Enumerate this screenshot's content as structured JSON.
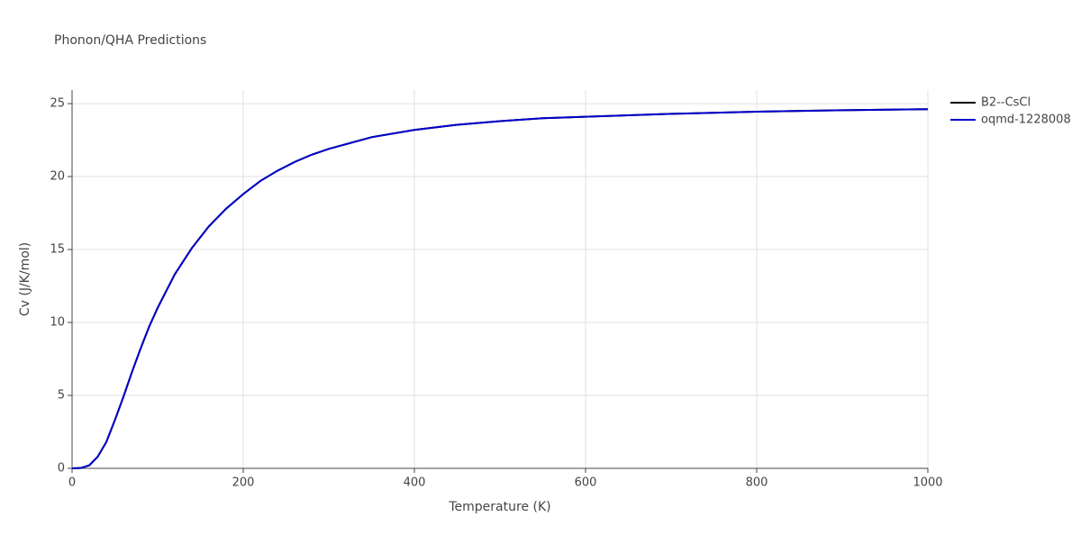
{
  "chart_data": {
    "type": "line",
    "title": "Phonon/QHA Predictions",
    "x_label": "Temperature (K)",
    "y_label": "Cv (J/K/mol)",
    "x": [
      0,
      10,
      20,
      30,
      40,
      50,
      60,
      70,
      80,
      90,
      100,
      120,
      140,
      160,
      180,
      200,
      220,
      240,
      260,
      280,
      300,
      350,
      400,
      450,
      500,
      550,
      600,
      700,
      800,
      900,
      1000
    ],
    "series": [
      {
        "name": "B2--CsCl",
        "color": "#000000",
        "values": [
          0,
          0.02,
          0.2,
          0.8,
          1.8,
          3.3,
          4.9,
          6.6,
          8.2,
          9.7,
          11.0,
          13.3,
          15.1,
          16.6,
          17.8,
          18.8,
          19.7,
          20.4,
          21.0,
          21.5,
          21.9,
          22.7,
          23.2,
          23.55,
          23.8,
          24.0,
          24.1,
          24.3,
          24.45,
          24.55,
          24.62
        ]
      },
      {
        "name": "oqmd-1228008",
        "color": "#0000cc",
        "values": [
          0,
          0.02,
          0.2,
          0.8,
          1.8,
          3.3,
          4.9,
          6.6,
          8.2,
          9.7,
          11.0,
          13.3,
          15.1,
          16.6,
          17.8,
          18.8,
          19.7,
          20.4,
          21.0,
          21.5,
          21.9,
          22.7,
          23.2,
          23.55,
          23.8,
          24.0,
          24.1,
          24.3,
          24.45,
          24.55,
          24.62
        ]
      }
    ],
    "xlim": [
      0,
      1000
    ],
    "ylim": [
      0,
      25.93
    ],
    "xticks": [
      0,
      200,
      400,
      600,
      800,
      1000
    ],
    "yticks": [
      0,
      5,
      10,
      15,
      20,
      25
    ],
    "grid": true,
    "legend": "outside-right"
  }
}
